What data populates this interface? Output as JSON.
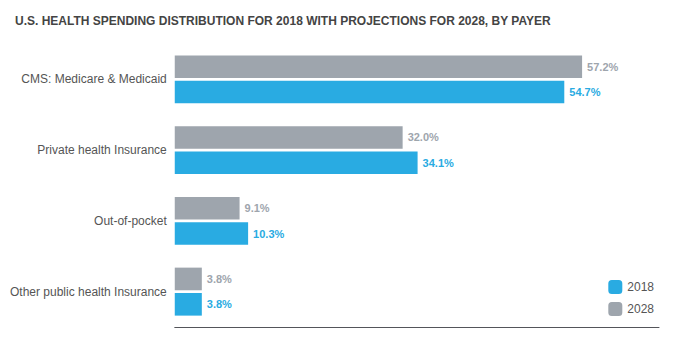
{
  "chart_data": {
    "type": "bar",
    "orientation": "horizontal",
    "title": "U.S. HEALTH SPENDING DISTRIBUTION FOR 2018 WITH PROJECTIONS FOR 2028, BY PAYER",
    "categories": [
      "Other public health Insurance",
      "Out-of-pocket",
      "Private health Insurance",
      "CMS: Medicare & Medicaid"
    ],
    "series": [
      {
        "name": "2018",
        "color": "#29ABE2",
        "values": [
          3.8,
          10.3,
          34.1,
          54.7
        ],
        "value_labels": [
          "3.8%",
          "10.3%",
          "34.1%",
          "54.7%"
        ]
      },
      {
        "name": "2028",
        "color": "#9EA5AD",
        "values": [
          3.8,
          9.1,
          32.0,
          57.2
        ],
        "value_labels": [
          "3.8%",
          "9.1%",
          "32.0%",
          "57.2%"
        ]
      }
    ],
    "xlim": [
      0,
      68
    ],
    "grid": false,
    "legend": "lower right",
    "data_labels": true,
    "tick_labels": "y"
  }
}
